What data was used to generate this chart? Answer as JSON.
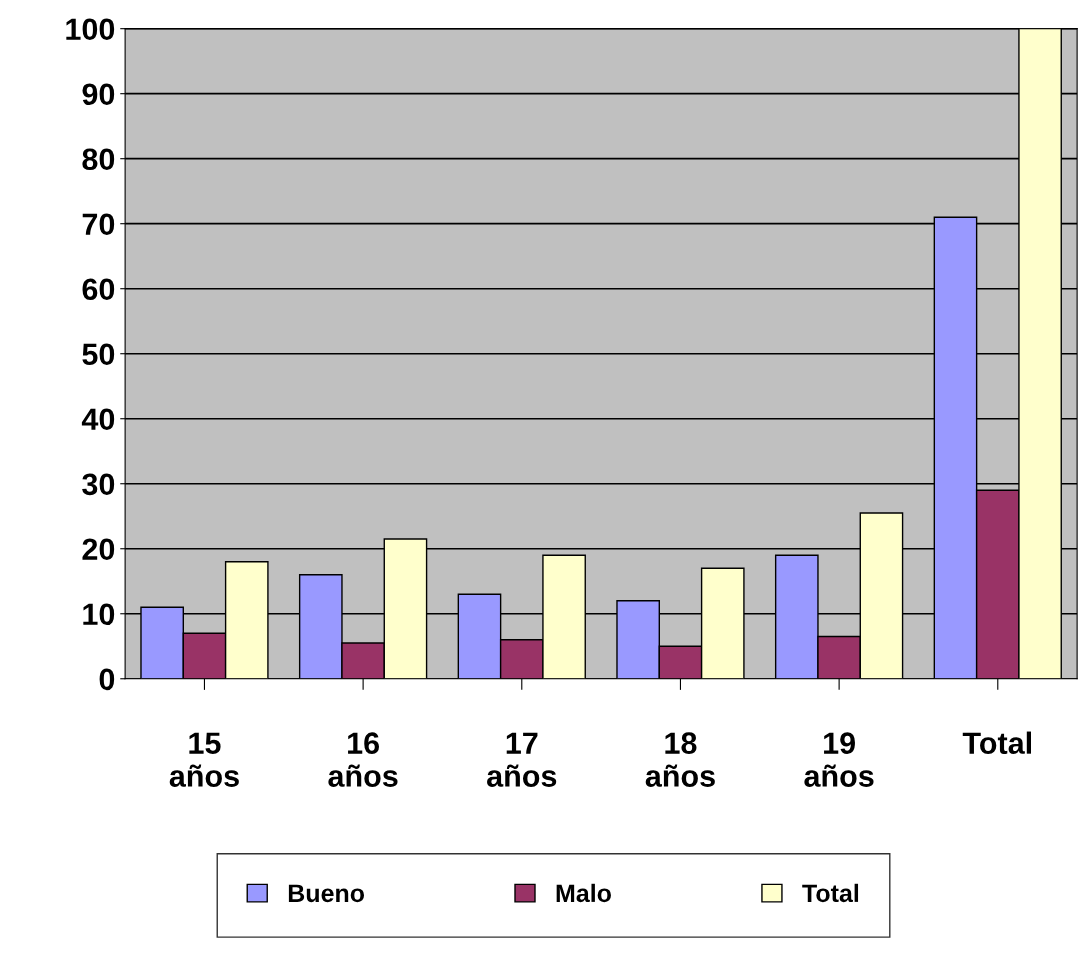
{
  "chart_data": {
    "type": "bar",
    "categories": [
      "15\naños",
      "16\naños",
      "17\naños",
      "18\naños",
      "19\naños",
      "Total"
    ],
    "series": [
      {
        "name": "Bueno",
        "color": "#9999ff",
        "values": [
          11,
          16,
          13,
          12,
          19,
          71
        ]
      },
      {
        "name": "Malo",
        "color": "#993366",
        "values": [
          7,
          5.5,
          6,
          5,
          6.5,
          29
        ]
      },
      {
        "name": "Total",
        "color": "#ffffcc",
        "values": [
          18,
          21.5,
          19,
          17,
          25.5,
          100
        ]
      }
    ],
    "ylim": [
      0,
      100
    ],
    "yticks": [
      0,
      10,
      20,
      30,
      40,
      50,
      60,
      70,
      80,
      90,
      100
    ],
    "grid": "y",
    "legend": "bottom"
  }
}
